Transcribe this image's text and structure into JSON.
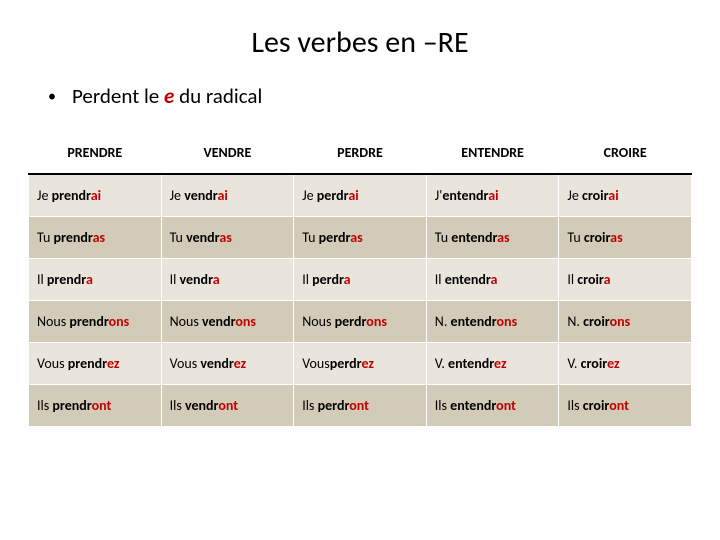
{
  "title": "Les verbes en –RE",
  "bullet_pre": "Perdent le ",
  "bullet_em": "e",
  "bullet_post": " du radical",
  "colors": {
    "red": "#c00000",
    "row_odd": "#e9e5dc",
    "row_even": "#d2cbb8",
    "border": "#ffffff",
    "header_underline": "#000000"
  },
  "table": {
    "headers": [
      "PRENDRE",
      "VENDRE",
      "PERDRE",
      "ENTENDRE",
      "CROIRE"
    ],
    "rows": [
      [
        {
          "pre": "Je ",
          "stem": "prendr",
          "end": "ai"
        },
        {
          "pre": "Je ",
          "stem": "vendr",
          "end": "ai"
        },
        {
          "pre": "Je ",
          "stem": "perdr",
          "end": "ai"
        },
        {
          "pre": "J'",
          "stem": "entendr",
          "end": "ai"
        },
        {
          "pre": "Je ",
          "stem": "croir",
          "end": "ai"
        }
      ],
      [
        {
          "pre": "Tu ",
          "stem": "prendr",
          "end": "as"
        },
        {
          "pre": "Tu ",
          "stem": "vendr",
          "end": "as"
        },
        {
          "pre": "Tu ",
          "stem": "perdr",
          "end": "as"
        },
        {
          "pre": "Tu ",
          "stem": "entendr",
          "end": "as"
        },
        {
          "pre": "Tu ",
          "stem": "croir",
          "end": "as"
        }
      ],
      [
        {
          "pre": "Il ",
          "stem": "prendr",
          "end": "a"
        },
        {
          "pre": "Il ",
          "stem": "vendr",
          "end": "a"
        },
        {
          "pre": "Il ",
          "stem": "perdr",
          "end": "a"
        },
        {
          "pre": "Il ",
          "stem": "entendr",
          "end": "a"
        },
        {
          "pre": "Il ",
          "stem": "croir",
          "end": "a"
        }
      ],
      [
        {
          "pre": "Nous ",
          "stem": "prendr",
          "end": "ons"
        },
        {
          "pre": "Nous ",
          "stem": "vendr",
          "end": "ons"
        },
        {
          "pre": "Nous ",
          "stem": "perdr",
          "end": "ons"
        },
        {
          "pre": "N. ",
          "stem": "entendr",
          "end": "ons"
        },
        {
          "pre": "N. ",
          "stem": "croir",
          "end": "ons"
        }
      ],
      [
        {
          "pre": "Vous ",
          "stem": "prendr",
          "end": "ez"
        },
        {
          "pre": "Vous ",
          "stem": "vendr",
          "end": "ez"
        },
        {
          "pre": "Vous",
          "stem": "perdr",
          "end": "ez"
        },
        {
          "pre": "V. ",
          "stem": "entendr",
          "end": "ez"
        },
        {
          "pre": "V. ",
          "stem": "croir",
          "end": "ez"
        }
      ],
      [
        {
          "pre": "Ils ",
          "stem": "prendr",
          "end": "ont"
        },
        {
          "pre": "Ils ",
          "stem": "vendr",
          "end": "ont"
        },
        {
          "pre": "Ils ",
          "stem": "perdr",
          "end": "ont"
        },
        {
          "pre": "Ils ",
          "stem": "entendr",
          "end": "ont"
        },
        {
          "pre": "Ils ",
          "stem": "croir",
          "end": "ont"
        }
      ]
    ]
  }
}
